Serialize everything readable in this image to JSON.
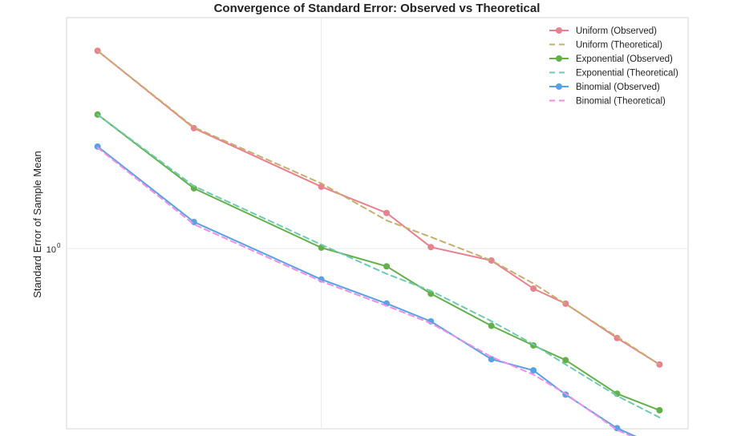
{
  "chart_data": {
    "type": "line",
    "title": "Convergence of Standard Error: Observed vs Theoretical",
    "xlabel": "",
    "ylabel": "Standard Error of Sample Mean",
    "y_scale": "log",
    "x_scale": "log",
    "x": [
      10,
      20,
      50,
      80,
      110,
      170,
      230,
      290,
      420,
      570
    ],
    "ylim": [
      0.17,
      9.7
    ],
    "y_tick_labels": [
      {
        "base": "10",
        "exponent": "0"
      }
    ],
    "grid": true,
    "legend_position": "top-right",
    "series": [
      {
        "name": "Uniform (Observed)",
        "style": "solid",
        "marker": "circle",
        "color": "#e8808e",
        "values": [
          7.0,
          3.27,
          1.84,
          1.42,
          1.015,
          0.89,
          0.675,
          0.582,
          0.415,
          0.32
        ]
      },
      {
        "name": "Uniform (Theoretical)",
        "style": "dashed",
        "marker": "none",
        "color": "#c4b06e",
        "values": [
          7.0,
          3.3,
          1.9,
          1.32,
          1.12,
          0.89,
          0.71,
          0.58,
          0.42,
          0.32
        ]
      },
      {
        "name": "Exponential (Observed)",
        "style": "solid",
        "marker": "circle",
        "color": "#63b04a",
        "values": [
          3.74,
          1.81,
          1.01,
          0.84,
          0.642,
          0.468,
          0.386,
          0.334,
          0.24,
          0.204
        ]
      },
      {
        "name": "Exponential (Theoretical)",
        "style": "dashed",
        "marker": "none",
        "color": "#6fc9b1",
        "values": [
          3.74,
          1.85,
          1.04,
          0.78,
          0.66,
          0.49,
          0.39,
          0.32,
          0.235,
          0.19
        ]
      },
      {
        "name": "Binomial (Observed)",
        "style": "solid",
        "marker": "circle",
        "color": "#57a2e2",
        "values": [
          2.73,
          1.3,
          0.739,
          0.583,
          0.489,
          0.337,
          0.302,
          0.238,
          0.171,
          0.142
        ]
      },
      {
        "name": "Binomial (Theoretical)",
        "style": "dashed",
        "marker": "none",
        "color": "#f08ee6",
        "values": [
          2.7,
          1.27,
          0.725,
          0.57,
          0.48,
          0.345,
          0.29,
          0.24,
          0.168,
          0.14
        ]
      }
    ]
  }
}
